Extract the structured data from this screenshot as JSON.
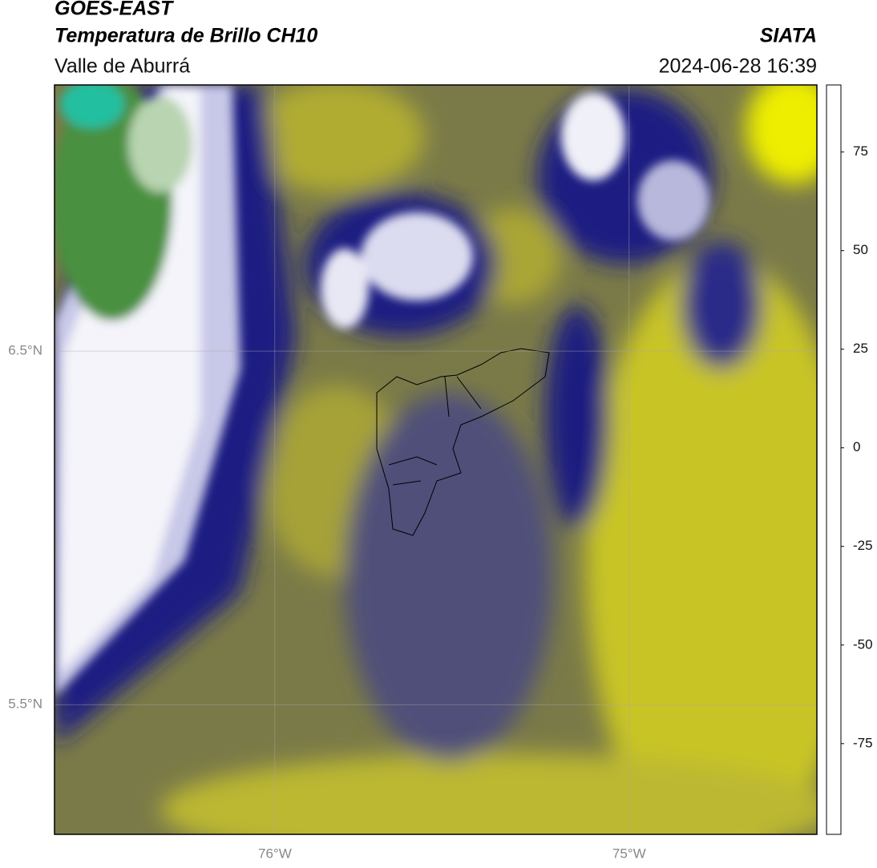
{
  "header": {
    "satellite": "GOES-EAST",
    "product": "Temperatura de Brillo CH10",
    "region": "Valle de Aburrá",
    "source": "SIATA",
    "datetime": "2024-06-28 16:39"
  },
  "map": {
    "xlim": [
      -76.622,
      -74.47
    ],
    "ylim": [
      5.133,
      7.253
    ],
    "xticks": [
      {
        "value": -76,
        "label": "76°W"
      },
      {
        "value": -75,
        "label": "75°W"
      }
    ],
    "yticks": [
      {
        "value": 6.5,
        "label": "6.5°N"
      },
      {
        "value": 5.5,
        "label": "5.5°N"
      }
    ],
    "grid": true
  },
  "colorbar": {
    "lim": [
      -98,
      92
    ],
    "ticks": [
      75,
      50,
      25,
      0,
      -25,
      -50,
      -75
    ],
    "stops": [
      {
        "value": -98,
        "color": "#ffffff"
      },
      {
        "value": -93,
        "color": "#ffffff"
      },
      {
        "value": -93,
        "color": "#00e8d8"
      },
      {
        "value": -82,
        "color": "#2aa070"
      },
      {
        "value": -68,
        "color": "#3a8a30"
      },
      {
        "value": -58,
        "color": "#b8d0b0"
      },
      {
        "value": -50,
        "color": "#ffffff"
      },
      {
        "value": -43,
        "color": "#b0b0d8"
      },
      {
        "value": -34,
        "color": "#4040a0"
      },
      {
        "value": -28,
        "color": "#00007a"
      },
      {
        "value": -23,
        "color": "#60607a"
      },
      {
        "value": -18,
        "color": "#a8a840"
      },
      {
        "value": -12,
        "color": "#ffff00"
      },
      {
        "value": -4,
        "color": "#ffa000"
      },
      {
        "value": 8,
        "color": "#ff1800"
      },
      {
        "value": 8,
        "color": "#000000"
      },
      {
        "value": 92,
        "color": "#000000"
      }
    ]
  }
}
